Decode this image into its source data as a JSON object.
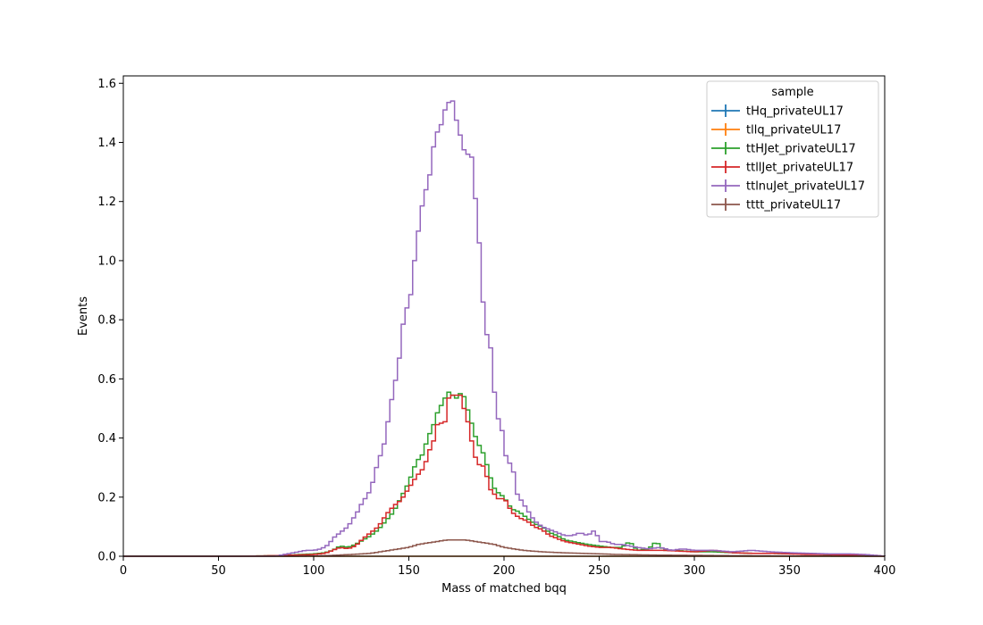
{
  "chart_data": {
    "type": "line",
    "style": "step-histogram",
    "xlabel": "Mass of matched bqq",
    "ylabel": "Events",
    "xlim": [
      0,
      400
    ],
    "ylim": [
      0,
      1.625
    ],
    "xticks": [
      0,
      50,
      100,
      150,
      200,
      250,
      300,
      350,
      400
    ],
    "yticks": [
      0.0,
      0.2,
      0.4,
      0.6,
      0.8,
      1.0,
      1.2,
      1.4,
      1.6
    ],
    "ytick_labels": [
      "0.0",
      "0.2",
      "0.4",
      "0.6",
      "0.8",
      "1.0",
      "1.2",
      "1.4",
      "1.6"
    ],
    "grid": false,
    "legend_title": "sample",
    "legend_placement": "upper-right",
    "bin_width": 2,
    "series": [
      {
        "name": "tHq_privateUL17",
        "color": "#1f77b4",
        "points": [
          [
            0,
            0.0
          ],
          [
            400,
            0.0
          ]
        ]
      },
      {
        "name": "tllq_privateUL17",
        "color": "#ff7f0e",
        "points": [
          [
            0,
            0.0
          ],
          [
            400,
            0.0
          ]
        ]
      },
      {
        "name": "ttHJet_privateUL17",
        "color": "#2ca02c",
        "points": [
          [
            0,
            0.0
          ],
          [
            60,
            0.0
          ],
          [
            80,
            0.002
          ],
          [
            90,
            0.005
          ],
          [
            100,
            0.008
          ],
          [
            106,
            0.012
          ],
          [
            110,
            0.02
          ],
          [
            114,
            0.035
          ],
          [
            118,
            0.03
          ],
          [
            122,
            0.04
          ],
          [
            126,
            0.055
          ],
          [
            130,
            0.07
          ],
          [
            134,
            0.09
          ],
          [
            138,
            0.12
          ],
          [
            142,
            0.15
          ],
          [
            146,
            0.2
          ],
          [
            150,
            0.25
          ],
          [
            154,
            0.32
          ],
          [
            158,
            0.35
          ],
          [
            160,
            0.41
          ],
          [
            162,
            0.42
          ],
          [
            164,
            0.47
          ],
          [
            166,
            0.5
          ],
          [
            168,
            0.52
          ],
          [
            170,
            0.55
          ],
          [
            172,
            0.56
          ],
          [
            174,
            0.53
          ],
          [
            176,
            0.54
          ],
          [
            178,
            0.56
          ],
          [
            180,
            0.52
          ],
          [
            182,
            0.47
          ],
          [
            184,
            0.43
          ],
          [
            186,
            0.38
          ],
          [
            188,
            0.37
          ],
          [
            190,
            0.33
          ],
          [
            192,
            0.29
          ],
          [
            194,
            0.24
          ],
          [
            196,
            0.22
          ],
          [
            198,
            0.21
          ],
          [
            200,
            0.2
          ],
          [
            204,
            0.16
          ],
          [
            208,
            0.15
          ],
          [
            212,
            0.13
          ],
          [
            216,
            0.11
          ],
          [
            220,
            0.1
          ],
          [
            224,
            0.08
          ],
          [
            228,
            0.07
          ],
          [
            232,
            0.055
          ],
          [
            236,
            0.05
          ],
          [
            240,
            0.045
          ],
          [
            244,
            0.04
          ],
          [
            250,
            0.035
          ],
          [
            256,
            0.03
          ],
          [
            262,
            0.03
          ],
          [
            266,
            0.05
          ],
          [
            270,
            0.02
          ],
          [
            276,
            0.025
          ],
          [
            280,
            0.05
          ],
          [
            284,
            0.02
          ],
          [
            290,
            0.02
          ],
          [
            300,
            0.015
          ],
          [
            310,
            0.015
          ],
          [
            320,
            0.012
          ],
          [
            330,
            0.01
          ],
          [
            340,
            0.01
          ],
          [
            350,
            0.008
          ],
          [
            360,
            0.01
          ],
          [
            370,
            0.005
          ],
          [
            380,
            0.006
          ],
          [
            390,
            0.004
          ],
          [
            400,
            0.0
          ]
        ]
      },
      {
        "name": "ttllJet_privateUL17",
        "color": "#d62728",
        "points": [
          [
            0,
            0.0
          ],
          [
            60,
            0.0
          ],
          [
            80,
            0.002
          ],
          [
            90,
            0.004
          ],
          [
            100,
            0.006
          ],
          [
            106,
            0.01
          ],
          [
            110,
            0.02
          ],
          [
            114,
            0.03
          ],
          [
            118,
            0.025
          ],
          [
            122,
            0.035
          ],
          [
            126,
            0.06
          ],
          [
            130,
            0.08
          ],
          [
            134,
            0.1
          ],
          [
            138,
            0.14
          ],
          [
            142,
            0.17
          ],
          [
            146,
            0.19
          ],
          [
            150,
            0.23
          ],
          [
            154,
            0.27
          ],
          [
            158,
            0.3
          ],
          [
            160,
            0.34
          ],
          [
            162,
            0.38
          ],
          [
            164,
            0.4
          ],
          [
            166,
            0.49
          ],
          [
            168,
            0.41
          ],
          [
            170,
            0.5
          ],
          [
            172,
            0.57
          ],
          [
            174,
            0.52
          ],
          [
            176,
            0.57
          ],
          [
            178,
            0.52
          ],
          [
            180,
            0.48
          ],
          [
            182,
            0.43
          ],
          [
            184,
            0.35
          ],
          [
            186,
            0.32
          ],
          [
            188,
            0.3
          ],
          [
            190,
            0.31
          ],
          [
            192,
            0.23
          ],
          [
            194,
            0.22
          ],
          [
            196,
            0.2
          ],
          [
            198,
            0.19
          ],
          [
            200,
            0.2
          ],
          [
            204,
            0.15
          ],
          [
            208,
            0.13
          ],
          [
            212,
            0.12
          ],
          [
            216,
            0.1
          ],
          [
            220,
            0.09
          ],
          [
            224,
            0.07
          ],
          [
            228,
            0.06
          ],
          [
            232,
            0.05
          ],
          [
            236,
            0.045
          ],
          [
            240,
            0.04
          ],
          [
            244,
            0.035
          ],
          [
            250,
            0.03
          ],
          [
            256,
            0.03
          ],
          [
            262,
            0.025
          ],
          [
            270,
            0.02
          ],
          [
            276,
            0.02
          ],
          [
            284,
            0.02
          ],
          [
            290,
            0.018
          ],
          [
            300,
            0.015
          ],
          [
            310,
            0.02
          ],
          [
            320,
            0.012
          ],
          [
            330,
            0.01
          ],
          [
            340,
            0.01
          ],
          [
            350,
            0.008
          ],
          [
            360,
            0.006
          ],
          [
            370,
            0.006
          ],
          [
            380,
            0.004
          ],
          [
            390,
            0.005
          ],
          [
            400,
            0.0
          ]
        ]
      },
      {
        "name": "ttlnuJet_privateUL17",
        "color": "#9467bd",
        "points": [
          [
            0,
            0.0
          ],
          [
            80,
            0.0
          ],
          [
            84,
            0.005
          ],
          [
            88,
            0.01
          ],
          [
            92,
            0.015
          ],
          [
            96,
            0.02
          ],
          [
            100,
            0.02
          ],
          [
            104,
            0.025
          ],
          [
            108,
            0.04
          ],
          [
            110,
            0.06
          ],
          [
            112,
            0.07
          ],
          [
            114,
            0.08
          ],
          [
            116,
            0.09
          ],
          [
            118,
            0.1
          ],
          [
            120,
            0.12
          ],
          [
            122,
            0.14
          ],
          [
            124,
            0.16
          ],
          [
            126,
            0.19
          ],
          [
            128,
            0.2
          ],
          [
            130,
            0.23
          ],
          [
            132,
            0.27
          ],
          [
            134,
            0.33
          ],
          [
            136,
            0.35
          ],
          [
            138,
            0.41
          ],
          [
            140,
            0.5
          ],
          [
            142,
            0.56
          ],
          [
            144,
            0.63
          ],
          [
            146,
            0.71
          ],
          [
            148,
            0.86
          ],
          [
            150,
            0.82
          ],
          [
            152,
            0.95
          ],
          [
            154,
            1.05
          ],
          [
            156,
            1.15
          ],
          [
            158,
            1.22
          ],
          [
            160,
            1.26
          ],
          [
            162,
            1.32
          ],
          [
            164,
            1.45
          ],
          [
            166,
            1.42
          ],
          [
            168,
            1.5
          ],
          [
            170,
            1.52
          ],
          [
            172,
            1.55
          ],
          [
            174,
            1.53
          ],
          [
            176,
            1.42
          ],
          [
            178,
            1.43
          ],
          [
            180,
            1.32
          ],
          [
            182,
            1.4
          ],
          [
            184,
            1.3
          ],
          [
            186,
            1.12
          ],
          [
            188,
            1.0
          ],
          [
            190,
            0.72
          ],
          [
            192,
            0.78
          ],
          [
            194,
            0.63
          ],
          [
            196,
            0.48
          ],
          [
            198,
            0.45
          ],
          [
            200,
            0.4
          ],
          [
            202,
            0.28
          ],
          [
            204,
            0.35
          ],
          [
            206,
            0.22
          ],
          [
            208,
            0.2
          ],
          [
            210,
            0.18
          ],
          [
            212,
            0.16
          ],
          [
            214,
            0.14
          ],
          [
            216,
            0.12
          ],
          [
            218,
            0.11
          ],
          [
            220,
            0.1
          ],
          [
            224,
            0.09
          ],
          [
            228,
            0.08
          ],
          [
            232,
            0.07
          ],
          [
            236,
            0.07
          ],
          [
            240,
            0.08
          ],
          [
            244,
            0.07
          ],
          [
            248,
            0.09
          ],
          [
            250,
            0.05
          ],
          [
            254,
            0.05
          ],
          [
            258,
            0.04
          ],
          [
            262,
            0.04
          ],
          [
            266,
            0.035
          ],
          [
            270,
            0.03
          ],
          [
            276,
            0.025
          ],
          [
            282,
            0.03
          ],
          [
            288,
            0.02
          ],
          [
            294,
            0.025
          ],
          [
            300,
            0.02
          ],
          [
            310,
            0.02
          ],
          [
            320,
            0.015
          ],
          [
            330,
            0.02
          ],
          [
            340,
            0.015
          ],
          [
            350,
            0.012
          ],
          [
            360,
            0.01
          ],
          [
            370,
            0.008
          ],
          [
            380,
            0.008
          ],
          [
            390,
            0.006
          ],
          [
            400,
            0.0
          ]
        ]
      },
      {
        "name": "tttt_privateUL17",
        "color": "#8c564b",
        "points": [
          [
            0,
            0.0
          ],
          [
            90,
            0.0
          ],
          [
            100,
            0.001
          ],
          [
            110,
            0.003
          ],
          [
            120,
            0.006
          ],
          [
            130,
            0.01
          ],
          [
            140,
            0.02
          ],
          [
            150,
            0.03
          ],
          [
            155,
            0.04
          ],
          [
            160,
            0.045
          ],
          [
            165,
            0.05
          ],
          [
            170,
            0.055
          ],
          [
            175,
            0.055
          ],
          [
            180,
            0.055
          ],
          [
            185,
            0.05
          ],
          [
            190,
            0.045
          ],
          [
            195,
            0.04
          ],
          [
            200,
            0.03
          ],
          [
            205,
            0.025
          ],
          [
            210,
            0.02
          ],
          [
            220,
            0.015
          ],
          [
            230,
            0.012
          ],
          [
            240,
            0.01
          ],
          [
            250,
            0.008
          ],
          [
            260,
            0.006
          ],
          [
            270,
            0.005
          ],
          [
            280,
            0.004
          ],
          [
            300,
            0.003
          ],
          [
            320,
            0.002
          ],
          [
            350,
            0.001
          ],
          [
            400,
            0.0
          ]
        ]
      }
    ]
  }
}
